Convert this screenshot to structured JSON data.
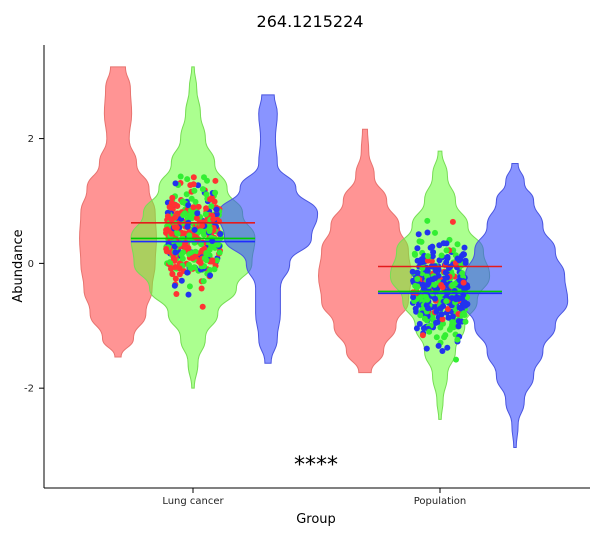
{
  "chart_data": {
    "type": "violin",
    "title": "264.1215224",
    "xlabel": "Group",
    "ylabel": "Abundance",
    "categories": [
      "Lung cancer",
      "Population"
    ],
    "y_ticks": [
      2,
      0,
      -2
    ],
    "y_tick_labels": [
      "2",
      "0",
      "-2"
    ],
    "ylim": [
      -3.6,
      3.5
    ],
    "significance_label": "****",
    "colors": {
      "red": "#ff4d4d",
      "green": "#66ff33",
      "blue": "#3b4cff",
      "red_line": "#e41a1c",
      "blue_line": "#1f2bff",
      "green_line": "#00cc00"
    },
    "series": [
      {
        "category": "Lung cancer",
        "color": "red",
        "violin_range": [
          -1.5,
          3.15
        ],
        "violin_profile": [
          [
            -1.5,
            0.05
          ],
          [
            -1.2,
            0.25
          ],
          [
            -0.8,
            0.45
          ],
          [
            -0.4,
            0.55
          ],
          [
            0,
            0.6
          ],
          [
            0.4,
            0.62
          ],
          [
            0.8,
            0.6
          ],
          [
            1.2,
            0.5
          ],
          [
            1.6,
            0.3
          ],
          [
            2.0,
            0.18
          ],
          [
            2.4,
            0.22
          ],
          [
            2.8,
            0.2
          ],
          [
            3.15,
            0.12
          ]
        ],
        "mean": 0.65
      },
      {
        "category": "Lung cancer",
        "color": "green",
        "violin_range": [
          -2.0,
          3.15
        ],
        "violin_profile": [
          [
            -2.0,
            0.02
          ],
          [
            -1.6,
            0.08
          ],
          [
            -1.2,
            0.2
          ],
          [
            -0.8,
            0.4
          ],
          [
            -0.4,
            0.7
          ],
          [
            0,
            0.95
          ],
          [
            0.4,
            1.0
          ],
          [
            0.8,
            0.8
          ],
          [
            1.2,
            0.55
          ],
          [
            1.6,
            0.35
          ],
          [
            2.0,
            0.2
          ],
          [
            2.4,
            0.12
          ],
          [
            2.8,
            0.06
          ],
          [
            3.15,
            0.02
          ]
        ],
        "mean": 0.4
      },
      {
        "category": "Lung cancer",
        "color": "blue",
        "violin_range": [
          -1.6,
          2.7
        ],
        "violin_profile": [
          [
            -1.6,
            0.05
          ],
          [
            -1.2,
            0.15
          ],
          [
            -0.8,
            0.2
          ],
          [
            -0.4,
            0.2
          ],
          [
            0,
            0.35
          ],
          [
            0.4,
            0.7
          ],
          [
            0.8,
            0.8
          ],
          [
            1.2,
            0.45
          ],
          [
            1.6,
            0.15
          ],
          [
            2.0,
            0.12
          ],
          [
            2.4,
            0.15
          ],
          [
            2.7,
            0.1
          ]
        ],
        "mean": 0.35
      },
      {
        "category": "Population",
        "color": "red",
        "violin_range": [
          -1.75,
          2.15
        ],
        "violin_profile": [
          [
            -1.75,
            0.1
          ],
          [
            -1.4,
            0.3
          ],
          [
            -1.0,
            0.5
          ],
          [
            -0.6,
            0.7
          ],
          [
            -0.2,
            0.75
          ],
          [
            0.2,
            0.7
          ],
          [
            0.6,
            0.55
          ],
          [
            1.0,
            0.35
          ],
          [
            1.4,
            0.15
          ],
          [
            1.8,
            0.06
          ],
          [
            2.15,
            0.04
          ]
        ],
        "mean": -0.05
      },
      {
        "category": "Population",
        "color": "green",
        "violin_range": [
          -2.5,
          1.8
        ],
        "violin_profile": [
          [
            -2.5,
            0.02
          ],
          [
            -2.2,
            0.05
          ],
          [
            -1.8,
            0.12
          ],
          [
            -1.4,
            0.25
          ],
          [
            -1.0,
            0.4
          ],
          [
            -0.6,
            0.6
          ],
          [
            -0.2,
            0.8
          ],
          [
            0.2,
            0.7
          ],
          [
            0.6,
            0.45
          ],
          [
            1.0,
            0.25
          ],
          [
            1.4,
            0.12
          ],
          [
            1.8,
            0.03
          ]
        ],
        "mean": -0.45
      },
      {
        "category": "Population",
        "color": "blue",
        "violin_range": [
          -2.95,
          1.6
        ],
        "violin_profile": [
          [
            -2.95,
            0.02
          ],
          [
            -2.6,
            0.05
          ],
          [
            -2.2,
            0.15
          ],
          [
            -1.8,
            0.3
          ],
          [
            -1.4,
            0.45
          ],
          [
            -1.0,
            0.65
          ],
          [
            -0.6,
            0.85
          ],
          [
            -0.2,
            0.8
          ],
          [
            0.2,
            0.65
          ],
          [
            0.6,
            0.45
          ],
          [
            1.0,
            0.3
          ],
          [
            1.3,
            0.15
          ],
          [
            1.6,
            0.05
          ]
        ],
        "mean": -0.48
      }
    ],
    "points": {
      "Lung cancer": {
        "range": [
          -2.0,
          3.15
        ],
        "center": 0.5
      },
      "Population": {
        "range": [
          -2.95,
          2.15
        ],
        "center": -0.4
      }
    }
  }
}
